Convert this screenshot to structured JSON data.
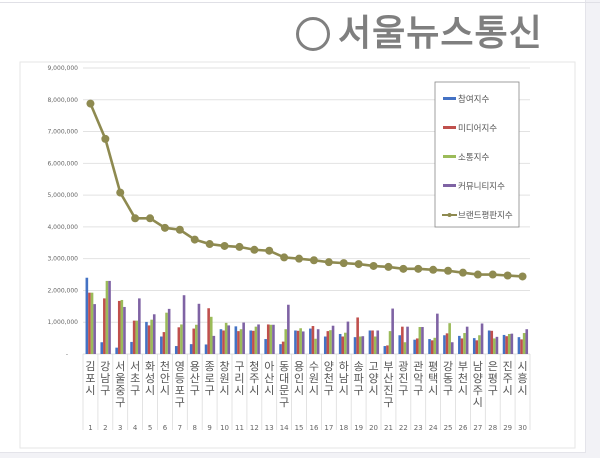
{
  "chart_data": {
    "type": "bar+line",
    "categories": [
      "김포시",
      "강남구",
      "서울중구",
      "서초구",
      "화성시",
      "천안시",
      "영등포구",
      "용산구",
      "종로구",
      "창원시",
      "구리시",
      "청주시",
      "아산시",
      "동대문구",
      "용인시",
      "수원시",
      "양천구",
      "하남시",
      "송파구",
      "고양시",
      "부산진구",
      "광진구",
      "관악구",
      "평택시",
      "강동구",
      "부천시",
      "남양주시",
      "은평구",
      "진주시",
      "시흥시"
    ],
    "ranks": [
      "1",
      "2",
      "3",
      "4",
      "5",
      "6",
      "7",
      "8",
      "9",
      "10",
      "11",
      "12",
      "13",
      "14",
      "15",
      "16",
      "17",
      "18",
      "19",
      "20",
      "21",
      "22",
      "23",
      "24",
      "25",
      "26",
      "27",
      "28",
      "29",
      "30"
    ],
    "ylim": [
      0,
      9000000
    ],
    "yticks": [
      "-",
      "1,000,000",
      "2,000,000",
      "3,000,000",
      "4,000,000",
      "5,000,000",
      "6,000,000",
      "7,000,000",
      "8,000,000",
      "9,000,000"
    ],
    "grid": true,
    "legend_position": "right",
    "series": [
      {
        "name": "참여지수",
        "type": "bar",
        "color": "#4472c4",
        "values": [
          2400000,
          370000,
          200000,
          380000,
          1010000,
          550000,
          250000,
          310000,
          300000,
          780000,
          870000,
          740000,
          470000,
          310000,
          740000,
          800000,
          550000,
          630000,
          530000,
          740000,
          250000,
          590000,
          450000,
          470000,
          590000,
          570000,
          500000,
          740000,
          600000,
          530000
        ]
      },
      {
        "name": "미디어지수",
        "type": "bar",
        "color": "#c0504d",
        "values": [
          1930000,
          1750000,
          1670000,
          1050000,
          900000,
          690000,
          840000,
          800000,
          1440000,
          740000,
          720000,
          730000,
          930000,
          390000,
          730000,
          880000,
          720000,
          550000,
          1150000,
          740000,
          270000,
          860000,
          490000,
          430000,
          650000,
          490000,
          430000,
          730000,
          560000,
          460000
        ]
      },
      {
        "name": "소통지수",
        "type": "bar",
        "color": "#9bbb59",
        "values": [
          1930000,
          2300000,
          1700000,
          1050000,
          1080000,
          1300000,
          930000,
          920000,
          1170000,
          980000,
          780000,
          860000,
          920000,
          780000,
          810000,
          480000,
          750000,
          670000,
          550000,
          550000,
          720000,
          370000,
          850000,
          510000,
          970000,
          660000,
          590000,
          490000,
          630000,
          660000
        ]
      },
      {
        "name": "커뮤니티지수",
        "type": "bar",
        "color": "#7f63a4",
        "values": [
          1570000,
          2300000,
          1480000,
          1750000,
          1250000,
          1420000,
          1850000,
          1580000,
          570000,
          900000,
          990000,
          930000,
          920000,
          1550000,
          710000,
          780000,
          890000,
          1020000,
          560000,
          740000,
          1430000,
          860000,
          850000,
          1270000,
          370000,
          860000,
          960000,
          540000,
          640000,
          780000
        ]
      },
      {
        "name": "브랜드평판지수",
        "type": "line",
        "color": "#8e8a50",
        "values": [
          7880000,
          6770000,
          5080000,
          4270000,
          4270000,
          3970000,
          3910000,
          3600000,
          3460000,
          3400000,
          3370000,
          3280000,
          3250000,
          3040000,
          3000000,
          2950000,
          2890000,
          2860000,
          2830000,
          2770000,
          2740000,
          2680000,
          2680000,
          2650000,
          2620000,
          2560000,
          2500000,
          2500000,
          2470000,
          2440000
        ]
      }
    ]
  },
  "watermark": "서울뉴스통신"
}
